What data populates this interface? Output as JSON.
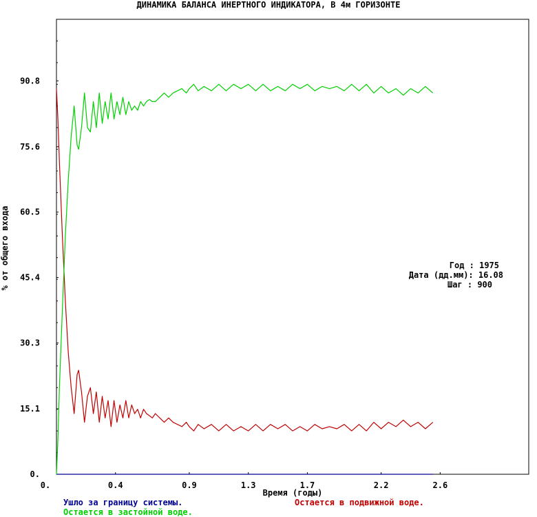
{
  "chart_data": {
    "type": "line",
    "title": "ДИНАМИКА БАЛАНСА ИНЕРТНОГО ИНДИКАТОРА, В 4м ГОРИЗОНТЕ",
    "xlabel": "Время (годы)",
    "ylabel": "% от общего входа",
    "xlim": [
      0,
      3.2
    ],
    "ylim": [
      0,
      105
    ],
    "x_ticks": [
      "0.",
      "0.4",
      "0.9",
      "1.3",
      "1.7",
      "2.2",
      "2.6"
    ],
    "x_tick_values": [
      0,
      0.4,
      0.9,
      1.3,
      1.7,
      2.2,
      2.6
    ],
    "y_ticks": [
      "0.",
      "15.1",
      "30.3",
      "45.4",
      "60.5",
      "75.6",
      "90.8"
    ],
    "y_tick_values": [
      0,
      15.1,
      30.3,
      45.4,
      60.5,
      75.6,
      90.8
    ],
    "grid": false,
    "legend_placement": "bottom",
    "series": [
      {
        "name": "Остается в подвижной воде.",
        "color": "#c00000",
        "x": [
          0.0,
          0.01,
          0.02,
          0.04,
          0.06,
          0.08,
          0.1,
          0.12,
          0.14,
          0.15,
          0.17,
          0.19,
          0.21,
          0.23,
          0.25,
          0.27,
          0.29,
          0.31,
          0.33,
          0.35,
          0.37,
          0.39,
          0.41,
          0.43,
          0.45,
          0.47,
          0.49,
          0.51,
          0.53,
          0.55,
          0.57,
          0.59,
          0.61,
          0.63,
          0.65,
          0.67,
          0.7,
          0.73,
          0.76,
          0.79,
          0.82,
          0.85,
          0.88,
          0.9,
          0.93,
          0.96,
          1.0,
          1.05,
          1.1,
          1.15,
          1.2,
          1.25,
          1.3,
          1.35,
          1.4,
          1.45,
          1.5,
          1.55,
          1.6,
          1.65,
          1.7,
          1.75,
          1.8,
          1.85,
          1.9,
          1.95,
          2.0,
          2.05,
          2.1,
          2.15,
          2.2,
          2.25,
          2.3,
          2.35,
          2.4,
          2.45,
          2.5,
          2.55
        ],
        "values": [
          89,
          82,
          72,
          55,
          40,
          28,
          20,
          14,
          23,
          24,
          19,
          12,
          18,
          20,
          14,
          19,
          12,
          18,
          13,
          17,
          11,
          17,
          12,
          16,
          13,
          17,
          13,
          16,
          14,
          15,
          13,
          15,
          14,
          13.5,
          13,
          14,
          13,
          12,
          13,
          12,
          11.5,
          11,
          12,
          11,
          10,
          11.5,
          10.5,
          11.5,
          10,
          11.5,
          10,
          11,
          10,
          11.5,
          10,
          11.5,
          10.5,
          11.5,
          10,
          11,
          10,
          11.5,
          10.5,
          11,
          10.5,
          11.5,
          10,
          11.5,
          10,
          12,
          10.5,
          12,
          11,
          12.5,
          11,
          12,
          10.5,
          12
        ]
      },
      {
        "name": "Остается в застойной воде.",
        "color": "#00d000",
        "x": [
          0.0,
          0.01,
          0.02,
          0.04,
          0.06,
          0.08,
          0.1,
          0.12,
          0.14,
          0.15,
          0.17,
          0.19,
          0.21,
          0.23,
          0.25,
          0.27,
          0.29,
          0.31,
          0.33,
          0.35,
          0.37,
          0.39,
          0.41,
          0.43,
          0.45,
          0.47,
          0.49,
          0.51,
          0.53,
          0.55,
          0.57,
          0.59,
          0.61,
          0.63,
          0.65,
          0.67,
          0.7,
          0.73,
          0.76,
          0.79,
          0.82,
          0.85,
          0.88,
          0.9,
          0.93,
          0.96,
          1.0,
          1.05,
          1.1,
          1.15,
          1.2,
          1.25,
          1.3,
          1.35,
          1.4,
          1.45,
          1.5,
          1.55,
          1.6,
          1.65,
          1.7,
          1.75,
          1.8,
          1.85,
          1.9,
          1.95,
          2.0,
          2.05,
          2.1,
          2.15,
          2.2,
          2.25,
          2.3,
          2.35,
          2.4,
          2.45,
          2.5,
          2.55
        ],
        "values": [
          0,
          8,
          20,
          38,
          55,
          68,
          78,
          85,
          76,
          75,
          80,
          88,
          80,
          79,
          86,
          80,
          88,
          81,
          86,
          82,
          88,
          82,
          86,
          83,
          87,
          83,
          86,
          84,
          85,
          84,
          86,
          85,
          86,
          86.5,
          86,
          86,
          87,
          88,
          87,
          88,
          88.5,
          89,
          88,
          89,
          90,
          88.5,
          89.5,
          88.5,
          90,
          88.5,
          90,
          89,
          90,
          88.5,
          90,
          88.5,
          89.5,
          88.5,
          90,
          89,
          90,
          88.5,
          89.5,
          89,
          89.5,
          88.5,
          90,
          88.5,
          90,
          88,
          89.5,
          88,
          89,
          87.5,
          89,
          88,
          89.5,
          88
        ]
      },
      {
        "name": "Ушло за границу системы.",
        "color": "#000090",
        "x": [
          0.0,
          2.55
        ],
        "values": [
          0,
          0
        ]
      }
    ]
  },
  "info": {
    "year_label": "Год : 1975",
    "date_label": "Дата (дд.мм): 16.08",
    "step_label": "Шаг : 900"
  },
  "legend": {
    "out_of_system": "Ушло за границу системы.",
    "mobile_water": "Остается в подвижной воде.",
    "stagnant_water": "Остается в застойной воде."
  },
  "colors": {
    "axis": "#000000",
    "mobile": "#c00000",
    "stagnant": "#00d000",
    "outflow": "#000090"
  }
}
